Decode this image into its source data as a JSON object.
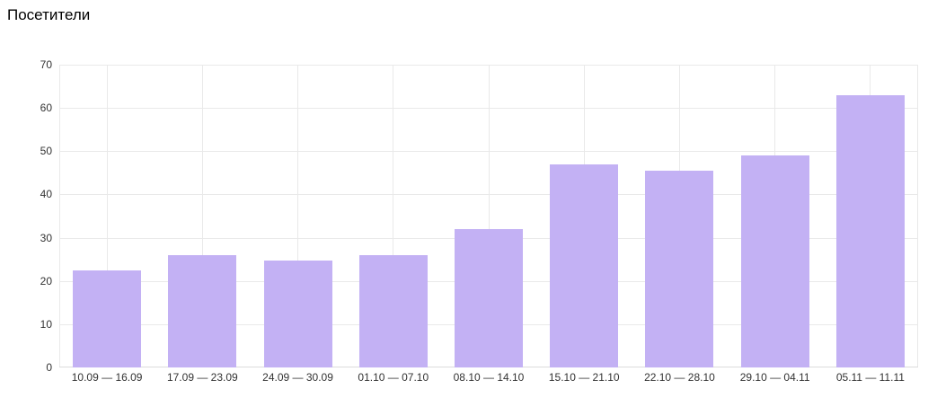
{
  "page": {
    "title": "Посетители"
  },
  "chart_data": {
    "type": "bar",
    "title": "Посетители",
    "categories": [
      "10.09 — 16.09",
      "17.09 — 23.09",
      "24.09 — 30.09",
      "01.10 — 07.10",
      "08.10 — 14.10",
      "15.10 — 21.10",
      "22.10 — 28.10",
      "29.10 — 04.11",
      "05.11 — 11.11"
    ],
    "values": [
      22.5,
      26,
      24.7,
      26,
      32,
      47,
      45.5,
      49,
      63
    ],
    "xlabel": "",
    "ylabel": "",
    "ylim": [
      0,
      70
    ],
    "yticks": [
      0,
      10,
      20,
      30,
      40,
      50,
      60,
      70
    ],
    "grid": "horizontal every 10 units, vertical at category centers",
    "legend": "none",
    "colors": {
      "bar_fill": "#c3b1f4",
      "gridline": "#e9e9e9",
      "axis_line": "#dcdcdc",
      "tick_label": "#333333",
      "title": "#000000",
      "background": "#ffffff"
    }
  }
}
